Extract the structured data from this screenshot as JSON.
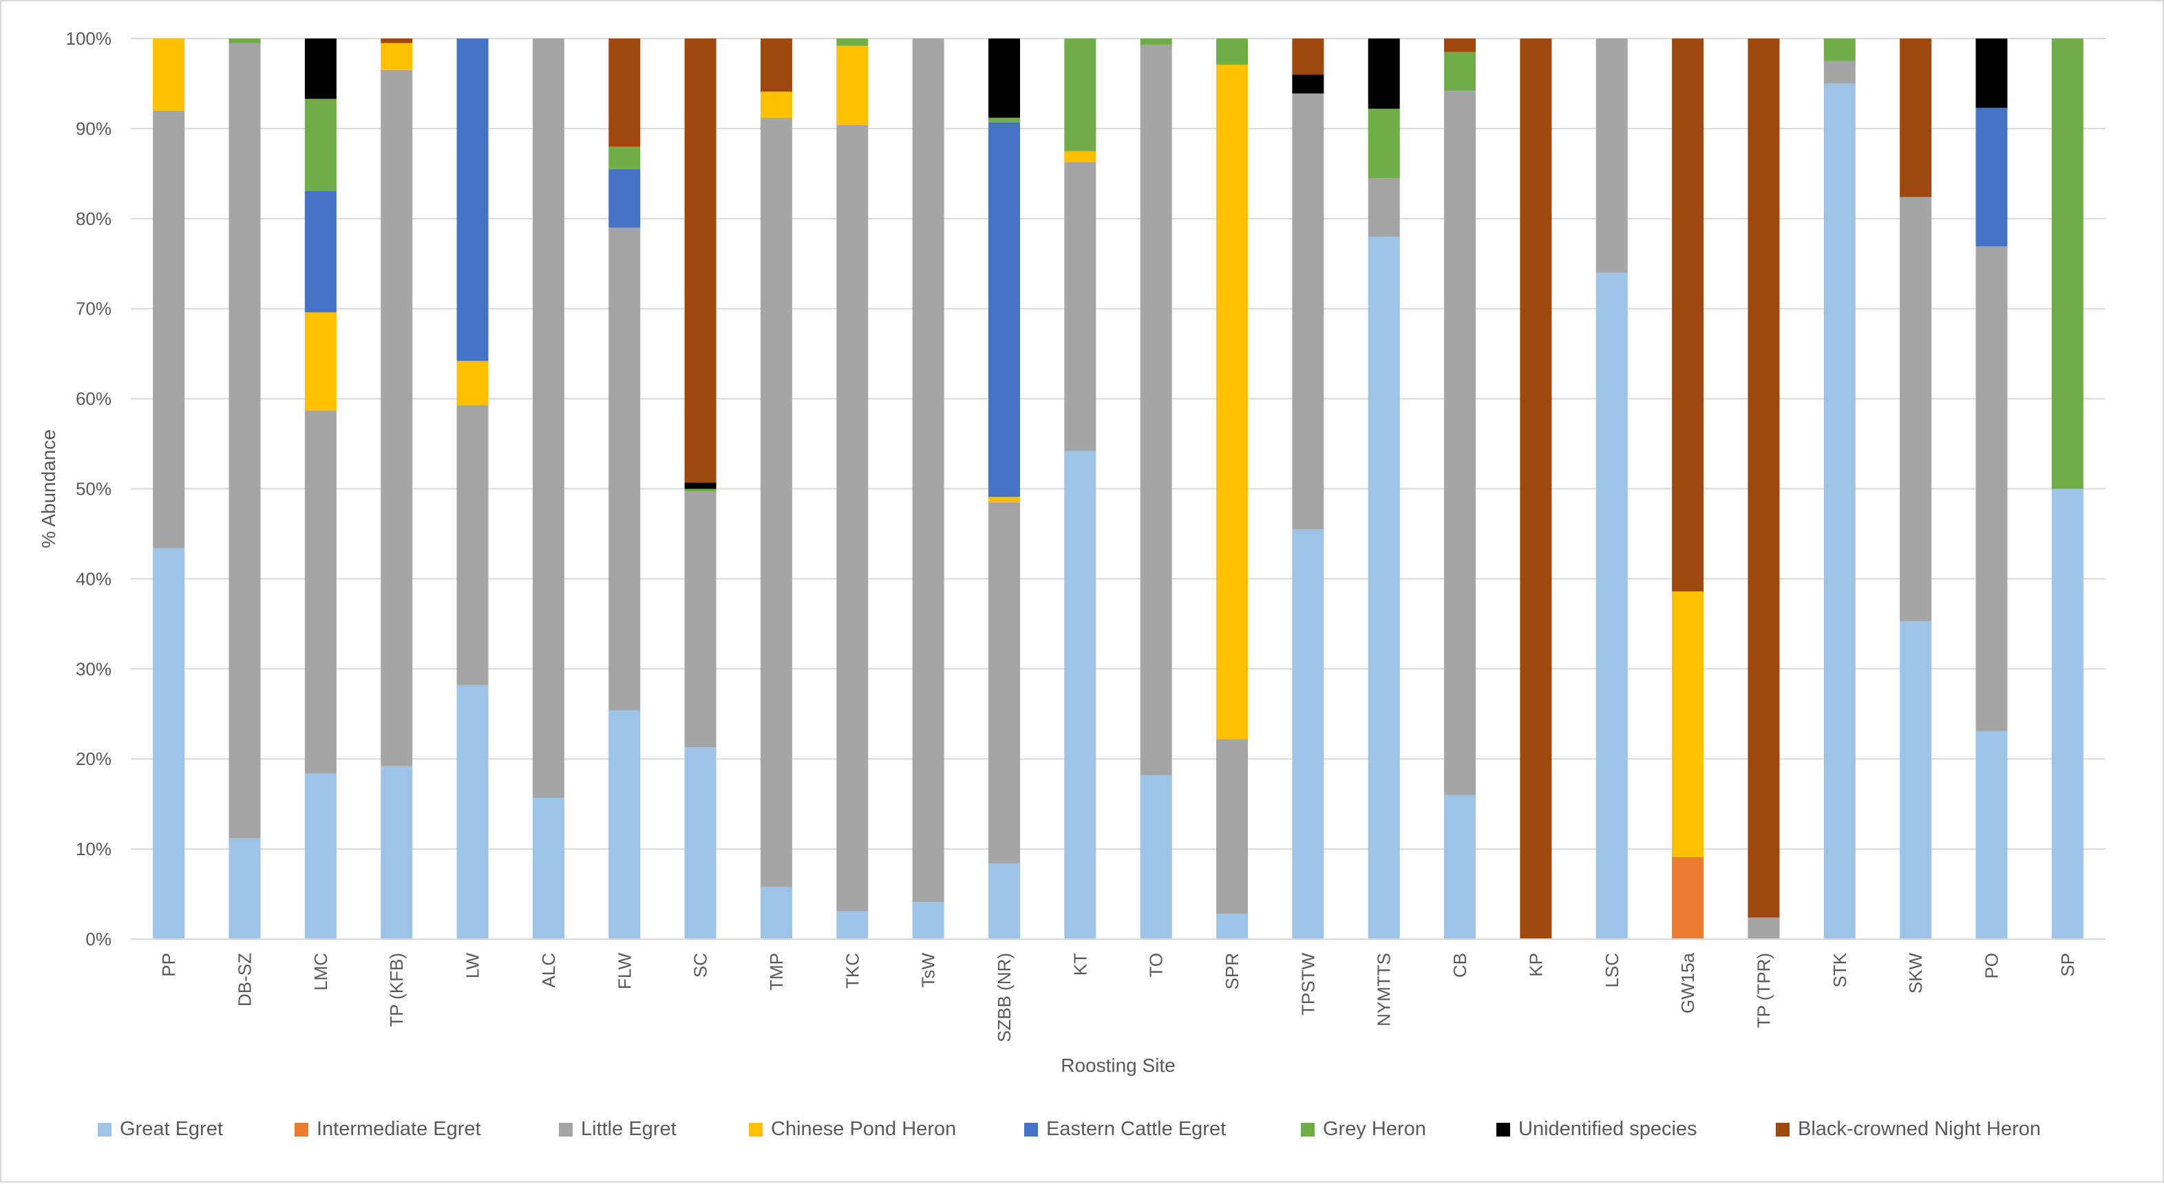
{
  "chart_data": {
    "type": "bar",
    "stacked": true,
    "percent": true,
    "xlabel": "Roosting Site",
    "ylabel": "% Abundance",
    "ylim": [
      0,
      100
    ],
    "yticks": [
      "0%",
      "10%",
      "20%",
      "30%",
      "40%",
      "50%",
      "60%",
      "70%",
      "80%",
      "90%",
      "100%"
    ],
    "grid": true,
    "legend_position": "bottom",
    "categories": [
      "PP",
      "DB-SZ",
      "LMC",
      "TP (KFB)",
      "LW",
      "ALC",
      "FLW",
      "SC",
      "TMP",
      "TKC",
      "TsW",
      "SZBB (NR)",
      "KT",
      "TO",
      "SPR",
      "TPSTW",
      "NYMTTS",
      "CB",
      "KP",
      "LSC",
      "GW15a",
      "TP (TPR)",
      "STK",
      "SKW",
      "PO",
      "SP"
    ],
    "series": [
      {
        "name": "Great Egret",
        "color": "#9dc3e6",
        "values": [
          43.4,
          11.2,
          18.4,
          19.2,
          28.2,
          15.7,
          25.4,
          21.3,
          5.8,
          3.1,
          4.1,
          8.4,
          54.2,
          18.2,
          2.8,
          45.5,
          78.0,
          16.0,
          0,
          74.0,
          0,
          0,
          95.0,
          35.3,
          23.1,
          50.0
        ]
      },
      {
        "name": "Intermediate Egret",
        "color": "#ed7d31",
        "values": [
          0,
          0,
          0,
          0,
          0,
          0,
          0,
          0,
          0,
          0,
          0,
          0,
          0,
          0,
          0,
          0,
          0,
          0,
          0,
          0,
          9.1,
          0,
          0,
          0,
          0,
          0
        ]
      },
      {
        "name": "Little Egret",
        "color": "#a5a5a5",
        "values": [
          48.6,
          88.3,
          40.3,
          77.3,
          31.1,
          84.3,
          53.6,
          28.4,
          85.4,
          87.3,
          95.9,
          40.1,
          32.1,
          81.1,
          19.4,
          48.4,
          6.5,
          78.2,
          0,
          26.0,
          0,
          2.4,
          2.5,
          47.1,
          53.8,
          0
        ]
      },
      {
        "name": "Chinese Pond Heron",
        "color": "#ffc000",
        "values": [
          8.0,
          0,
          10.9,
          3.0,
          4.9,
          0,
          0,
          0,
          2.9,
          8.8,
          0,
          0.6,
          1.2,
          0,
          74.9,
          0,
          0,
          0,
          0,
          0,
          29.5,
          0,
          0,
          0,
          0,
          0
        ]
      },
      {
        "name": "Eastern Cattle Egret",
        "color": "#4472c4",
        "values": [
          0,
          0,
          13.5,
          0,
          35.8,
          0,
          6.5,
          0,
          0,
          0,
          0,
          41.6,
          0,
          0,
          0,
          0,
          0,
          0,
          0,
          0,
          0,
          0,
          0,
          0,
          15.4,
          0
        ]
      },
      {
        "name": "Grey Heron",
        "color": "#70ad47",
        "values": [
          0,
          0.5,
          10.2,
          0,
          0,
          0,
          2.5,
          0.3,
          0,
          0.8,
          0,
          0.5,
          12.5,
          0.7,
          2.9,
          0,
          7.7,
          4.3,
          0,
          0,
          0,
          0,
          2.5,
          0,
          0,
          50.0
        ]
      },
      {
        "name": "Unidentified species",
        "color": "#000000",
        "values": [
          0,
          0,
          6.7,
          0,
          0,
          0,
          0,
          0.7,
          0,
          0,
          0,
          8.8,
          0,
          0,
          0,
          2.1,
          7.8,
          0,
          0,
          0,
          0,
          0,
          0,
          0,
          7.7,
          0
        ]
      },
      {
        "name": "Black-crowned Night Heron",
        "color": "#9e480e",
        "values": [
          0,
          0,
          0,
          0.5,
          0,
          0,
          12.0,
          49.3,
          5.9,
          0,
          0,
          0,
          0,
          0,
          0,
          4.0,
          0,
          1.5,
          100.0,
          0,
          61.4,
          97.6,
          0,
          17.6,
          0,
          0
        ]
      }
    ]
  }
}
